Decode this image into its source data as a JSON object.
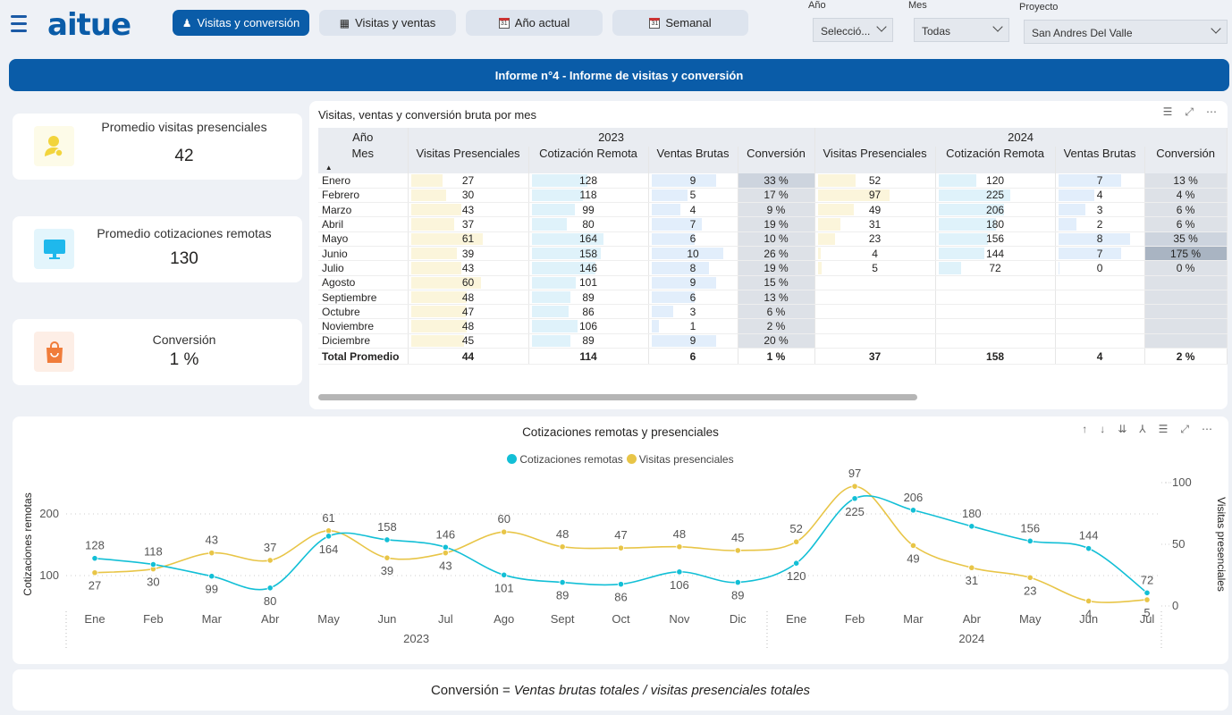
{
  "header": {
    "logo": "aitue",
    "nav": [
      {
        "label": "Visitas y conversión",
        "icon": "person-icon",
        "active": true
      },
      {
        "label": "Visitas y ventas",
        "icon": "building-icon",
        "active": false
      },
      {
        "label": "Año actual",
        "icon": "calendar-icon",
        "active": false
      },
      {
        "label": "Semanal",
        "icon": "calendar-icon",
        "active": false
      }
    ],
    "slicers": {
      "anio": {
        "label": "Año",
        "value": "Selecció..."
      },
      "mes": {
        "label": "Mes",
        "value": "Todas"
      },
      "proyecto": {
        "label": "Proyecto",
        "value": "San Andres Del Valle"
      }
    }
  },
  "banner": "Informe n°4 - Informe de visitas y conversión",
  "kpis": [
    {
      "title": "Promedio visitas presenciales",
      "value": "42",
      "icon": "person-pin-icon",
      "color": "#f2d43c",
      "bg": "#fdfbe8"
    },
    {
      "title": "Promedio cotizaciones remotas",
      "value": "130",
      "icon": "monitor-icon",
      "color": "#1fb8ec",
      "bg": "#e3f5fc"
    },
    {
      "title": "Conversión",
      "value": "1 %",
      "icon": "shopping-bag-icon",
      "color": "#f07c3a",
      "bg": "#fdeee6"
    }
  ],
  "table": {
    "title": "Visitas, ventas y conversión bruta por mes",
    "year_header": "Año",
    "month_header": "Mes",
    "years": [
      "2023",
      "2024"
    ],
    "columns": [
      "Visitas Presenciales",
      "Cotización Remota",
      "Ventas Brutas",
      "Conversión"
    ],
    "rows": [
      {
        "mes": "Enero",
        "y2023": [
          "27",
          "128",
          "9",
          "33 %"
        ],
        "y2024": [
          "52",
          "120",
          "7",
          "13 %"
        ]
      },
      {
        "mes": "Febrero",
        "y2023": [
          "30",
          "118",
          "5",
          "17 %"
        ],
        "y2024": [
          "97",
          "225",
          "4",
          "4 %"
        ]
      },
      {
        "mes": "Marzo",
        "y2023": [
          "43",
          "99",
          "4",
          "9 %"
        ],
        "y2024": [
          "49",
          "206",
          "3",
          "6 %"
        ]
      },
      {
        "mes": "Abril",
        "y2023": [
          "37",
          "80",
          "7",
          "19 %"
        ],
        "y2024": [
          "31",
          "180",
          "2",
          "6 %"
        ]
      },
      {
        "mes": "Mayo",
        "y2023": [
          "61",
          "164",
          "6",
          "10 %"
        ],
        "y2024": [
          "23",
          "156",
          "8",
          "35 %"
        ]
      },
      {
        "mes": "Junio",
        "y2023": [
          "39",
          "158",
          "10",
          "26 %"
        ],
        "y2024": [
          "4",
          "144",
          "7",
          "175 %"
        ]
      },
      {
        "mes": "Julio",
        "y2023": [
          "43",
          "146",
          "8",
          "19 %"
        ],
        "y2024": [
          "5",
          "72",
          "0",
          "0 %"
        ]
      },
      {
        "mes": "Agosto",
        "y2023": [
          "60",
          "101",
          "9",
          "15 %"
        ],
        "y2024": [
          "",
          "",
          "",
          ""
        ]
      },
      {
        "mes": "Septiembre",
        "y2023": [
          "48",
          "89",
          "6",
          "13 %"
        ],
        "y2024": [
          "",
          "",
          "",
          ""
        ]
      },
      {
        "mes": "Octubre",
        "y2023": [
          "47",
          "86",
          "3",
          "6 %"
        ],
        "y2024": [
          "",
          "",
          "",
          ""
        ]
      },
      {
        "mes": "Noviembre",
        "y2023": [
          "48",
          "106",
          "1",
          "2 %"
        ],
        "y2024": [
          "",
          "",
          "",
          ""
        ]
      },
      {
        "mes": "Diciembre",
        "y2023": [
          "45",
          "89",
          "9",
          "20 %"
        ],
        "y2024": [
          "",
          "",
          "",
          ""
        ]
      }
    ],
    "total": {
      "label": "Total Promedio",
      "y2023": [
        "44",
        "114",
        "6",
        "1 %"
      ],
      "y2024": [
        "37",
        "158",
        "4",
        "2 %"
      ]
    }
  },
  "chart_data": {
    "type": "line",
    "title": "Cotizaciones remotas y presenciales",
    "x": [
      "Ene",
      "Feb",
      "Mar",
      "Abr",
      "May",
      "Jun",
      "Jul",
      "Ago",
      "Sept",
      "Oct",
      "Nov",
      "Dic",
      "Ene",
      "Feb",
      "Mar",
      "Abr",
      "May",
      "Jun",
      "Jul"
    ],
    "x_groups": [
      {
        "label": "2023",
        "count": 12
      },
      {
        "label": "2024",
        "count": 7
      }
    ],
    "series": [
      {
        "name": "Cotizaciones remotas",
        "axis": "left",
        "color": "#12bfd6",
        "values": [
          128,
          118,
          99,
          80,
          164,
          158,
          146,
          101,
          89,
          86,
          106,
          89,
          120,
          225,
          206,
          180,
          156,
          144,
          72
        ]
      },
      {
        "name": "Visitas presenciales",
        "axis": "right",
        "color": "#e8c547",
        "values": [
          27,
          30,
          43,
          37,
          61,
          39,
          43,
          60,
          48,
          47,
          48,
          45,
          52,
          97,
          49,
          31,
          23,
          4,
          5
        ]
      }
    ],
    "ylabel_left": "Cotizaciones remotas",
    "ylabel_right": "Visitas presenciales",
    "yticks_left": [
      100,
      200
    ],
    "yticks_right": [
      0,
      50,
      100
    ],
    "grid": true,
    "legend": "top-center"
  },
  "formula": {
    "prefix": "Conversión =",
    "expr": "Ventas brutas totales / visitas presenciales totales"
  }
}
